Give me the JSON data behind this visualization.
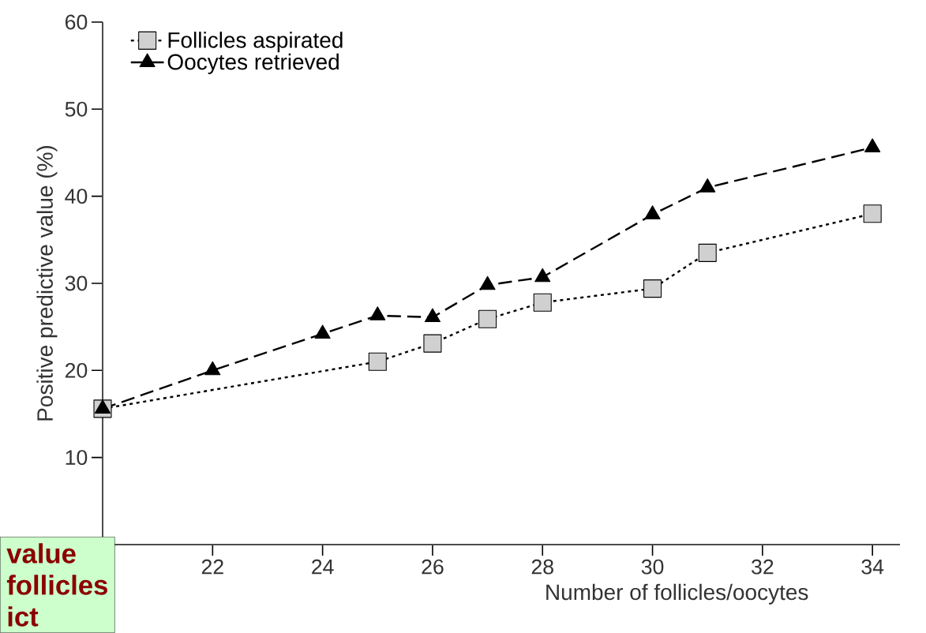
{
  "chart_data": {
    "type": "line",
    "xlabel": "Number of follicles/oocytes",
    "ylabel": "Positive predictive value (%)",
    "xlim": [
      20,
      34.5
    ],
    "xticks": [
      22,
      24,
      26,
      28,
      30,
      32,
      34
    ],
    "ylim": [
      0,
      60
    ],
    "yticks": [
      10,
      20,
      30,
      40,
      50,
      60
    ],
    "legend": "top left",
    "grid": false,
    "series": [
      {
        "name": "Follicles aspirated",
        "color": "#d0d0d0",
        "marker": "square",
        "line_style": "dotted",
        "x": [
          20,
          25,
          26,
          27,
          28,
          30,
          31,
          34
        ],
        "values": [
          15.6,
          21,
          23.1,
          25.9,
          27.8,
          29.4,
          33.5,
          38
        ]
      },
      {
        "name": "Oocytes retrieved",
        "color": "#000000",
        "marker": "triangle",
        "line_style": "dashed",
        "x": [
          20,
          22,
          24,
          25,
          26,
          27,
          28,
          30,
          31,
          34
        ],
        "values": [
          15.6,
          20,
          24.2,
          26.3,
          26.1,
          29.8,
          30.7,
          37.9,
          41,
          45.6
        ]
      }
    ],
    "annotations": [
      "value",
      "follicles",
      "ict"
    ]
  }
}
